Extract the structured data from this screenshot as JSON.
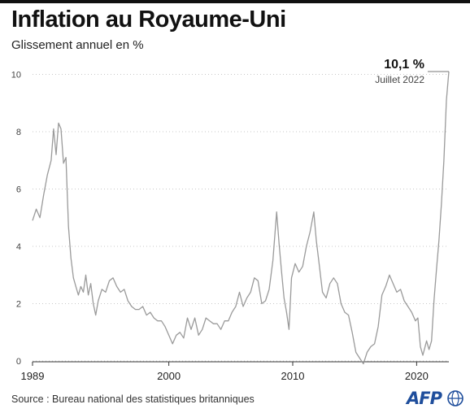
{
  "header": {
    "title": "Inflation au Royaume-Uni",
    "subtitle": "Glissement annuel en %"
  },
  "annotation": {
    "value": "10,1 %",
    "date": "Juillet 2022"
  },
  "footer": {
    "source": "Source : Bureau national des statistiques britanniques",
    "logo": "AFP"
  },
  "colors": {
    "line": "#9a9a9a",
    "grid": "#c8c8c8",
    "text": "#1a1a1a",
    "logo": "#1f4e9c"
  },
  "chart_data": {
    "type": "line",
    "title": "Inflation au Royaume-Uni",
    "subtitle": "Glissement annuel en %",
    "xlim": [
      1989.0,
      2022.6
    ],
    "ylim": [
      0,
      10.1
    ],
    "x_ticks": [
      {
        "value": 1989,
        "label": "1989"
      },
      {
        "value": 2000,
        "label": "2000"
      },
      {
        "value": 2010,
        "label": "2010"
      },
      {
        "value": 2020,
        "label": "2020"
      }
    ],
    "y_ticks": [
      {
        "value": 0,
        "label": "0"
      },
      {
        "value": 2,
        "label": "2"
      },
      {
        "value": 4,
        "label": "4"
      },
      {
        "value": 6,
        "label": "6"
      },
      {
        "value": 8,
        "label": "8"
      },
      {
        "value": 10,
        "label": "10"
      }
    ],
    "grid": "horizontal-dotted",
    "series": [
      {
        "points": [
          [
            1989.0,
            4.9
          ],
          [
            1989.3,
            5.3
          ],
          [
            1989.6,
            5.0
          ],
          [
            1989.9,
            5.8
          ],
          [
            1990.2,
            6.5
          ],
          [
            1990.5,
            7.0
          ],
          [
            1990.7,
            8.1
          ],
          [
            1990.9,
            7.2
          ],
          [
            1991.1,
            8.3
          ],
          [
            1991.3,
            8.1
          ],
          [
            1991.5,
            6.9
          ],
          [
            1991.7,
            7.1
          ],
          [
            1991.9,
            4.7
          ],
          [
            1992.1,
            3.6
          ],
          [
            1992.3,
            2.9
          ],
          [
            1992.5,
            2.6
          ],
          [
            1992.7,
            2.3
          ],
          [
            1992.9,
            2.6
          ],
          [
            1993.1,
            2.4
          ],
          [
            1993.3,
            3.0
          ],
          [
            1993.5,
            2.3
          ],
          [
            1993.7,
            2.7
          ],
          [
            1993.9,
            2.0
          ],
          [
            1994.1,
            1.6
          ],
          [
            1994.3,
            2.1
          ],
          [
            1994.6,
            2.5
          ],
          [
            1994.9,
            2.4
          ],
          [
            1995.2,
            2.8
          ],
          [
            1995.5,
            2.9
          ],
          [
            1995.8,
            2.6
          ],
          [
            1996.1,
            2.4
          ],
          [
            1996.4,
            2.5
          ],
          [
            1996.7,
            2.1
          ],
          [
            1997.0,
            1.9
          ],
          [
            1997.3,
            1.8
          ],
          [
            1997.6,
            1.8
          ],
          [
            1997.9,
            1.9
          ],
          [
            1998.2,
            1.6
          ],
          [
            1998.5,
            1.7
          ],
          [
            1998.8,
            1.5
          ],
          [
            1999.1,
            1.4
          ],
          [
            1999.4,
            1.4
          ],
          [
            1999.7,
            1.2
          ],
          [
            2000.0,
            0.9
          ],
          [
            2000.3,
            0.6
          ],
          [
            2000.6,
            0.9
          ],
          [
            2000.9,
            1.0
          ],
          [
            2001.2,
            0.8
          ],
          [
            2001.5,
            1.5
          ],
          [
            2001.8,
            1.1
          ],
          [
            2002.1,
            1.5
          ],
          [
            2002.4,
            0.9
          ],
          [
            2002.7,
            1.1
          ],
          [
            2003.0,
            1.5
          ],
          [
            2003.3,
            1.4
          ],
          [
            2003.6,
            1.3
          ],
          [
            2003.9,
            1.3
          ],
          [
            2004.2,
            1.1
          ],
          [
            2004.5,
            1.4
          ],
          [
            2004.8,
            1.4
          ],
          [
            2005.1,
            1.7
          ],
          [
            2005.4,
            1.9
          ],
          [
            2005.7,
            2.4
          ],
          [
            2006.0,
            1.9
          ],
          [
            2006.3,
            2.2
          ],
          [
            2006.6,
            2.4
          ],
          [
            2006.9,
            2.9
          ],
          [
            2007.2,
            2.8
          ],
          [
            2007.5,
            2.0
          ],
          [
            2007.8,
            2.1
          ],
          [
            2008.1,
            2.5
          ],
          [
            2008.4,
            3.5
          ],
          [
            2008.7,
            5.2
          ],
          [
            2008.9,
            4.1
          ],
          [
            2009.1,
            3.1
          ],
          [
            2009.3,
            2.2
          ],
          [
            2009.5,
            1.7
          ],
          [
            2009.7,
            1.1
          ],
          [
            2009.9,
            2.9
          ],
          [
            2010.2,
            3.4
          ],
          [
            2010.5,
            3.1
          ],
          [
            2010.8,
            3.3
          ],
          [
            2011.1,
            4.0
          ],
          [
            2011.4,
            4.5
          ],
          [
            2011.7,
            5.2
          ],
          [
            2011.9,
            4.2
          ],
          [
            2012.1,
            3.5
          ],
          [
            2012.4,
            2.4
          ],
          [
            2012.7,
            2.2
          ],
          [
            2013.0,
            2.7
          ],
          [
            2013.3,
            2.9
          ],
          [
            2013.6,
            2.7
          ],
          [
            2013.9,
            2.0
          ],
          [
            2014.2,
            1.7
          ],
          [
            2014.5,
            1.6
          ],
          [
            2014.8,
            1.0
          ],
          [
            2015.1,
            0.3
          ],
          [
            2015.4,
            0.1
          ],
          [
            2015.7,
            -0.1
          ],
          [
            2016.0,
            0.3
          ],
          [
            2016.3,
            0.5
          ],
          [
            2016.6,
            0.6
          ],
          [
            2016.9,
            1.2
          ],
          [
            2017.2,
            2.3
          ],
          [
            2017.5,
            2.6
          ],
          [
            2017.8,
            3.0
          ],
          [
            2018.1,
            2.7
          ],
          [
            2018.4,
            2.4
          ],
          [
            2018.7,
            2.5
          ],
          [
            2019.0,
            2.1
          ],
          [
            2019.3,
            1.9
          ],
          [
            2019.6,
            1.7
          ],
          [
            2019.9,
            1.4
          ],
          [
            2020.1,
            1.5
          ],
          [
            2020.3,
            0.5
          ],
          [
            2020.5,
            0.2
          ],
          [
            2020.8,
            0.7
          ],
          [
            2021.0,
            0.4
          ],
          [
            2021.2,
            0.7
          ],
          [
            2021.4,
            2.1
          ],
          [
            2021.6,
            3.2
          ],
          [
            2021.8,
            4.2
          ],
          [
            2022.0,
            5.5
          ],
          [
            2022.2,
            7.0
          ],
          [
            2022.4,
            9.1
          ],
          [
            2022.6,
            10.1
          ]
        ]
      }
    ]
  }
}
